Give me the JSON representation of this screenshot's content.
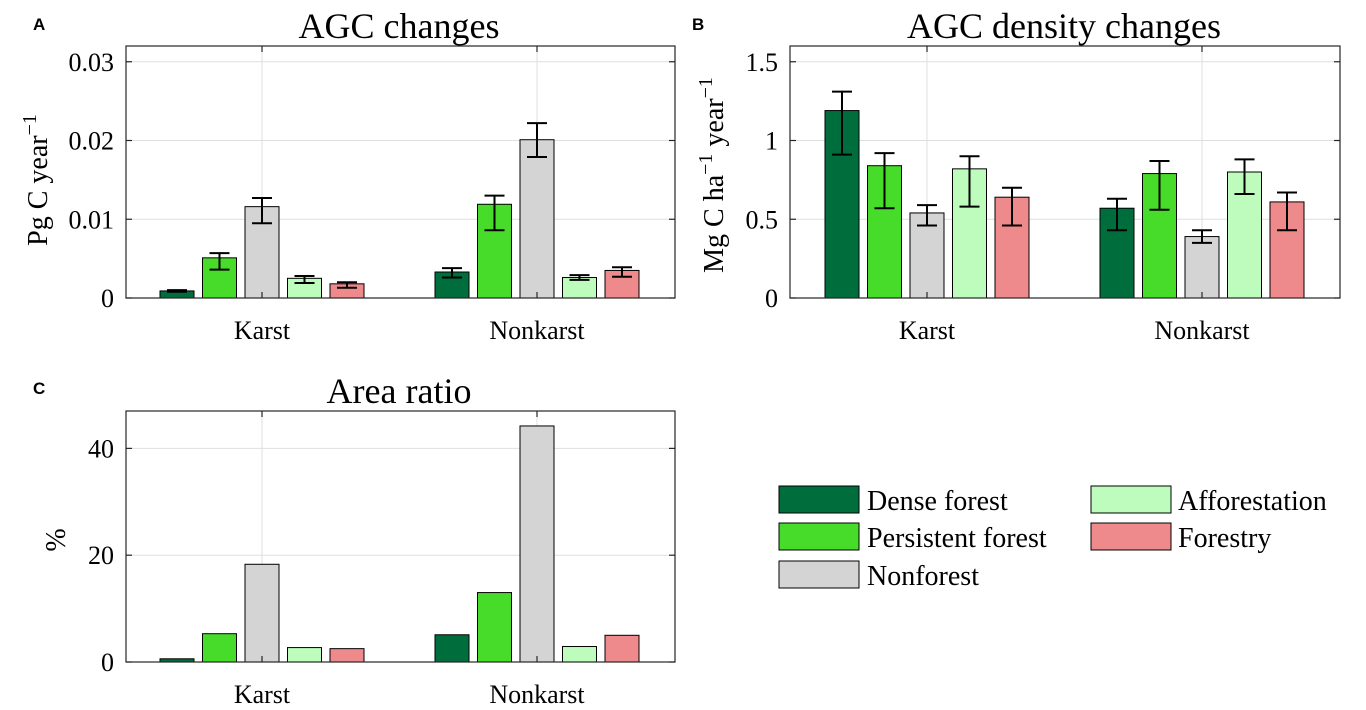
{
  "legend": {
    "entries": [
      {
        "label": "Dense forest",
        "color": "#006e3c"
      },
      {
        "label": "Persistent forest",
        "color": "#47dc2a"
      },
      {
        "label": "Nonforest",
        "color": "#d4d4d4"
      },
      {
        "label": "Afforestation",
        "color": "#bdfcbc"
      },
      {
        "label": "Forestry",
        "color": "#ef8a8c"
      }
    ]
  },
  "chart_data": [
    {
      "panel": "A",
      "type": "bar",
      "title": "AGC changes",
      "ylabel_main": "Pg C year",
      "ylabel_sup": "−1",
      "categories": [
        "Karst",
        "Nonkarst"
      ],
      "ylim": [
        0,
        0.032
      ],
      "yticks": [
        0,
        0.01,
        0.02,
        0.03
      ],
      "ytick_labels": [
        "0",
        "0.01",
        "0.02",
        "0.03"
      ],
      "grid": true,
      "series": [
        {
          "name": "Dense forest",
          "values": [
            0.0009,
            0.0033
          ],
          "err_low": [
            0.0008,
            0.0026
          ],
          "err_high": [
            0.001,
            0.0038
          ]
        },
        {
          "name": "Persistent forest",
          "values": [
            0.0051,
            0.0119
          ],
          "err_low": [
            0.0036,
            0.0086
          ],
          "err_high": [
            0.0057,
            0.013
          ]
        },
        {
          "name": "Nonforest",
          "values": [
            0.0116,
            0.0201
          ],
          "err_low": [
            0.0095,
            0.0179
          ],
          "err_high": [
            0.0127,
            0.0222
          ]
        },
        {
          "name": "Afforestation",
          "values": [
            0.0025,
            0.0026
          ],
          "err_low": [
            0.0019,
            0.0023
          ],
          "err_high": [
            0.0028,
            0.0029
          ]
        },
        {
          "name": "Forestry",
          "values": [
            0.0018,
            0.0035
          ],
          "err_low": [
            0.0013,
            0.0027
          ],
          "err_high": [
            0.002,
            0.0039
          ]
        }
      ]
    },
    {
      "panel": "B",
      "type": "bar",
      "title": "AGC density changes",
      "ylabel_main": "Mg C ha",
      "ylabel_sup": "−1",
      "ylabel_main2": " year",
      "ylabel_sup2": "−1",
      "categories": [
        "Karst",
        "Nonkarst"
      ],
      "ylim": [
        0,
        1.6
      ],
      "yticks": [
        0,
        0.5,
        1,
        1.5
      ],
      "ytick_labels": [
        "0",
        "0.5",
        "1",
        "1.5"
      ],
      "grid": true,
      "series": [
        {
          "name": "Dense forest",
          "values": [
            1.19,
            0.57
          ],
          "err_low": [
            0.91,
            0.43
          ],
          "err_high": [
            1.31,
            0.63
          ]
        },
        {
          "name": "Persistent forest",
          "values": [
            0.84,
            0.79
          ],
          "err_low": [
            0.57,
            0.56
          ],
          "err_high": [
            0.92,
            0.87
          ]
        },
        {
          "name": "Nonforest",
          "values": [
            0.54,
            0.39
          ],
          "err_low": [
            0.46,
            0.35
          ],
          "err_high": [
            0.59,
            0.43
          ]
        },
        {
          "name": "Afforestation",
          "values": [
            0.82,
            0.8
          ],
          "err_low": [
            0.58,
            0.66
          ],
          "err_high": [
            0.9,
            0.88
          ]
        },
        {
          "name": "Forestry",
          "values": [
            0.64,
            0.61
          ],
          "err_low": [
            0.46,
            0.43
          ],
          "err_high": [
            0.7,
            0.67
          ]
        }
      ]
    },
    {
      "panel": "C",
      "type": "bar",
      "title": "Area ratio",
      "ylabel_main": "%",
      "categories": [
        "Karst",
        "Nonkarst"
      ],
      "ylim": [
        0,
        47
      ],
      "yticks": [
        0,
        20,
        40
      ],
      "ytick_labels": [
        "0",
        "20",
        "40"
      ],
      "grid": true,
      "series": [
        {
          "name": "Dense forest",
          "values": [
            0.6,
            5.1
          ]
        },
        {
          "name": "Persistent forest",
          "values": [
            5.3,
            13.0
          ]
        },
        {
          "name": "Nonforest",
          "values": [
            18.3,
            44.2
          ]
        },
        {
          "name": "Afforestation",
          "values": [
            2.7,
            2.9
          ]
        },
        {
          "name": "Forestry",
          "values": [
            2.5,
            5.0
          ]
        }
      ]
    }
  ]
}
